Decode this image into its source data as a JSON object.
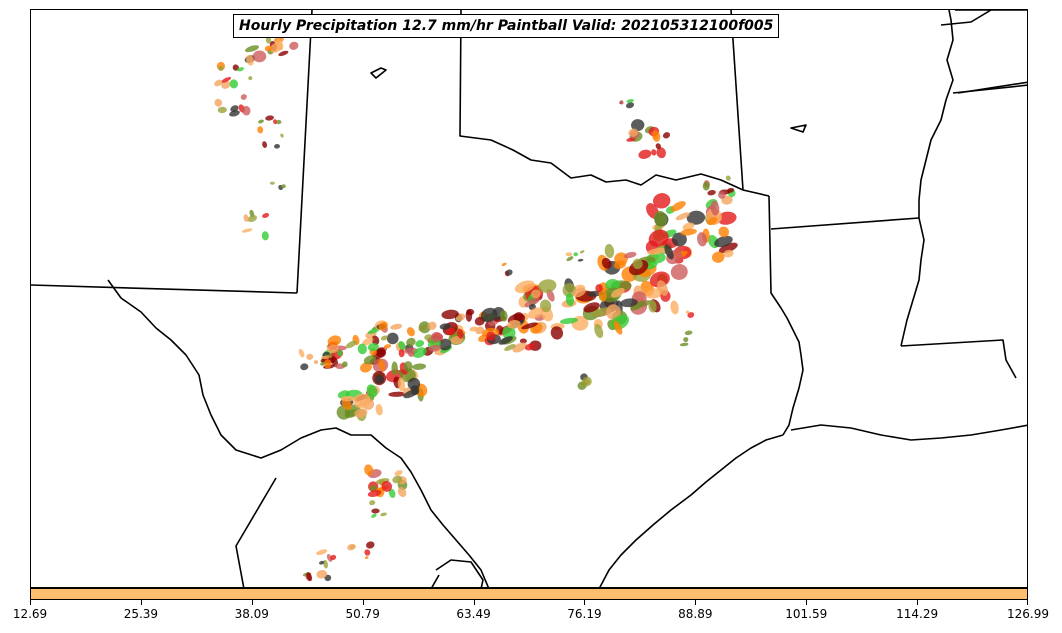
{
  "title": "Hourly Precipitation 12.7 mm/hr Paintball Valid: 202105312100f005",
  "colorbar": {
    "color": "#fdbf6f",
    "ticks": [
      "12.69",
      "25.39",
      "38.09",
      "50.79",
      "63.49",
      "76.19",
      "88.89",
      "101.59",
      "114.29",
      "126.99"
    ]
  },
  "member_colors": [
    "#e31a1c",
    "#ff7f00",
    "#fdae61",
    "#8b0000",
    "#33cc33",
    "#6b8e23",
    "#9aa33a",
    "#333333",
    "#cd5c5c",
    "#f4a460"
  ]
}
